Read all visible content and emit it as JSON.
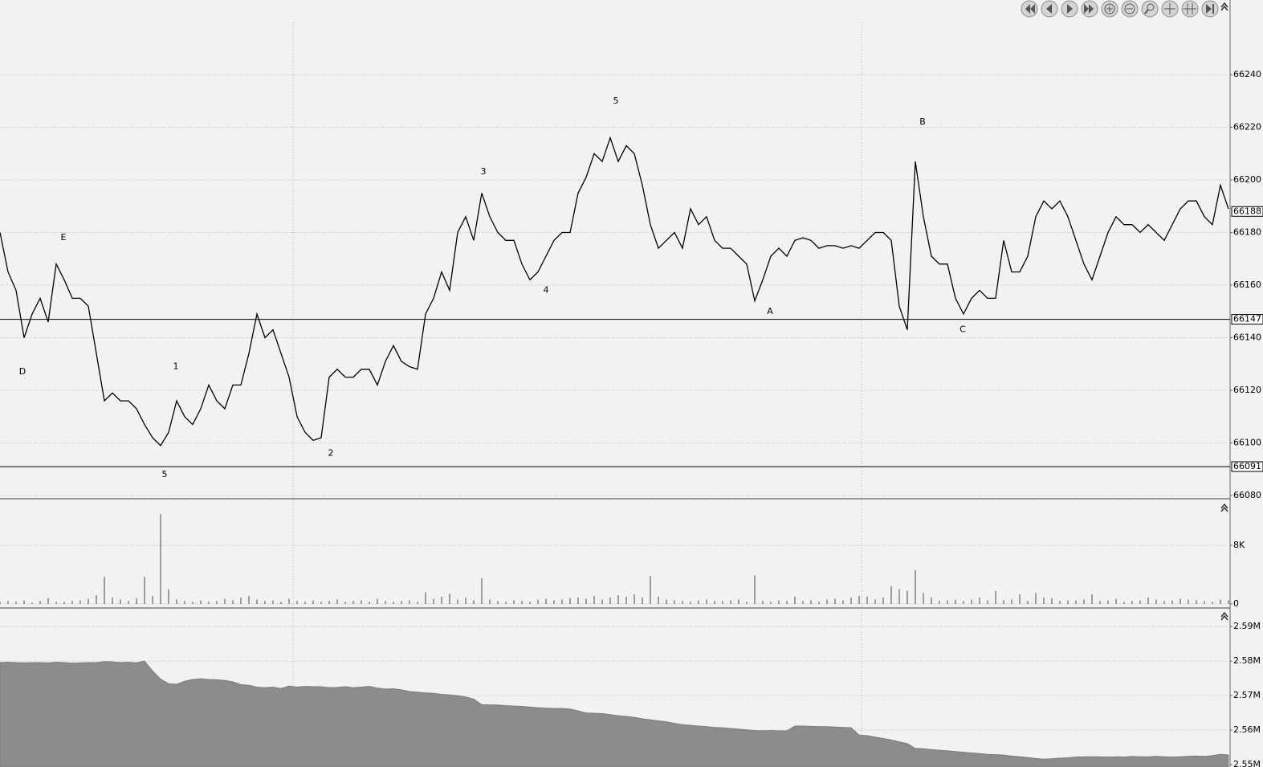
{
  "chart_data": [
    {
      "type": "line",
      "color": "#000000",
      "grid": true,
      "values": [
        66180,
        66165,
        66158,
        66140,
        66149,
        66155,
        66146,
        66168,
        66162,
        66155,
        66155,
        66152,
        66134,
        66116,
        66119,
        66116,
        66116,
        66113,
        66107,
        66102,
        66099,
        66104,
        66116,
        66110,
        66107,
        66113,
        66122,
        66116,
        66113,
        66122,
        66122,
        66134,
        66149,
        66140,
        66143,
        66134,
        66125,
        66110,
        66104,
        66101,
        66102,
        66125,
        66128,
        66125,
        66125,
        66128,
        66128,
        66122,
        66131,
        66137,
        66131,
        66129,
        66128,
        66149,
        66155,
        66165,
        66158,
        66180,
        66186,
        66177,
        66195,
        66186,
        66180,
        66177,
        66177,
        66168,
        66162,
        66165,
        66171,
        66177,
        66180,
        66180,
        66195,
        66201,
        66210,
        66207,
        66216,
        66207,
        66213,
        66210,
        66198,
        66183,
        66174,
        66177,
        66180,
        66174,
        66189,
        66183,
        66186,
        66177,
        66174,
        66174,
        66171,
        66168,
        66154,
        66162,
        66171,
        66174,
        66171,
        66177,
        66178,
        66177,
        66174,
        66175,
        66175,
        66174,
        66175,
        66174,
        66177,
        66180,
        66180,
        66177,
        66152,
        66143,
        66207,
        66186,
        66171,
        66168,
        66168,
        66155,
        66149,
        66155,
        66158,
        66155,
        66155,
        66177,
        66165,
        66165,
        66171,
        66186,
        66192,
        66189,
        66192,
        66186,
        66177,
        66168,
        66162,
        66171,
        66180,
        66186,
        66183,
        66183,
        66180,
        66183,
        66180,
        66177,
        66183,
        66189,
        66192,
        66192,
        66186,
        66183,
        66198,
        66189
      ],
      "ylim": [
        66080,
        66260
      ],
      "yticks": [
        66080,
        66100,
        66120,
        66140,
        66160,
        66180,
        66200,
        66220,
        66240
      ],
      "hlines": [
        66147,
        66091
      ],
      "last_value": 66188,
      "annotations": [
        {
          "text": "D",
          "x": 2.8,
          "y": 66127
        },
        {
          "text": "E",
          "x": 7.9,
          "y": 66178
        },
        {
          "text": "5",
          "x": 20.5,
          "y": 66088
        },
        {
          "text": "1",
          "x": 21.9,
          "y": 66129
        },
        {
          "text": "2",
          "x": 41.2,
          "y": 66096
        },
        {
          "text": "3",
          "x": 60.2,
          "y": 66203
        },
        {
          "text": "4",
          "x": 68,
          "y": 66158
        },
        {
          "text": "5",
          "x": 76.7,
          "y": 66230
        },
        {
          "text": "A",
          "x": 95.9,
          "y": 66150
        },
        {
          "text": "B",
          "x": 114.9,
          "y": 66222
        },
        {
          "text": "C",
          "x": 119.9,
          "y": 66143
        }
      ]
    },
    {
      "type": "bar",
      "color": "#808080",
      "grid": true,
      "values": [
        300,
        400,
        300,
        500,
        200,
        400,
        800,
        300,
        300,
        400,
        500,
        700,
        1200,
        3700,
        900,
        600,
        400,
        800,
        3700,
        1100,
        12300,
        2000,
        600,
        400,
        300,
        500,
        300,
        400,
        700,
        500,
        900,
        1100,
        600,
        400,
        500,
        300,
        700,
        400,
        300,
        500,
        300,
        400,
        600,
        300,
        400,
        500,
        300,
        700,
        400,
        300,
        400,
        500,
        300,
        1600,
        700,
        1000,
        1400,
        600,
        900,
        500,
        3500,
        600,
        400,
        300,
        500,
        400,
        300,
        600,
        700,
        500,
        600,
        800,
        900,
        700,
        1100,
        600,
        900,
        1200,
        1000,
        1300,
        900,
        3800,
        1000,
        600,
        500,
        400,
        300,
        500,
        600,
        400,
        400,
        500,
        600,
        300,
        3900,
        400,
        300,
        500,
        400,
        1000,
        400,
        500,
        300,
        600,
        700,
        500,
        900,
        1100,
        1000,
        600,
        900,
        2400,
        2000,
        1800,
        4600,
        1500,
        900,
        400,
        500,
        600,
        400,
        600,
        900,
        500,
        1800,
        500,
        600,
        1300,
        400,
        1500,
        900,
        800,
        400,
        500,
        500,
        600,
        1300,
        400,
        500,
        700,
        300,
        400,
        500,
        900,
        600,
        400,
        500,
        700,
        600,
        500,
        400,
        300,
        600,
        500
      ],
      "ylim": [
        0,
        13700
      ],
      "yticks": [
        0,
        {
          "value": 8000,
          "label": "8K"
        }
      ]
    },
    {
      "type": "area",
      "color": "#8c8c8c",
      "grid": true,
      "values": [
        2579600,
        2579700,
        2579600,
        2579500,
        2579600,
        2579600,
        2579500,
        2579700,
        2579600,
        2579400,
        2579500,
        2579600,
        2579600,
        2579900,
        2579800,
        2579600,
        2579700,
        2579500,
        2580000,
        2577200,
        2574800,
        2573500,
        2573300,
        2574200,
        2574700,
        2574900,
        2574700,
        2574600,
        2574400,
        2574000,
        2573200,
        2573000,
        2572500,
        2572300,
        2572500,
        2572100,
        2572800,
        2572500,
        2572700,
        2572600,
        2572600,
        2572300,
        2572400,
        2572600,
        2572300,
        2572500,
        2572700,
        2572200,
        2571900,
        2572000,
        2571700,
        2571200,
        2571000,
        2570800,
        2570700,
        2570400,
        2570200,
        2570000,
        2569600,
        2569000,
        2567400,
        2567300,
        2567300,
        2567100,
        2567000,
        2566900,
        2566700,
        2566500,
        2566400,
        2566300,
        2566300,
        2566100,
        2565600,
        2565000,
        2564900,
        2564800,
        2564500,
        2564200,
        2564000,
        2563700,
        2563300,
        2563000,
        2562700,
        2562400,
        2562000,
        2561600,
        2561400,
        2561200,
        2561000,
        2560800,
        2560700,
        2560500,
        2560300,
        2560100,
        2559900,
        2559800,
        2559900,
        2559800,
        2559800,
        2561200,
        2561200,
        2561100,
        2561000,
        2561000,
        2560900,
        2560800,
        2560700,
        2558600,
        2558400,
        2558000,
        2557600,
        2557200,
        2556600,
        2556100,
        2554700,
        2554600,
        2554400,
        2554200,
        2554000,
        2553800,
        2553600,
        2553400,
        2553200,
        2553000,
        2552900,
        2552800,
        2552500,
        2552300,
        2552100,
        2551800,
        2551600,
        2551700,
        2551900,
        2552000,
        2552200,
        2552300,
        2552300,
        2552300,
        2552200,
        2552300,
        2552200,
        2552400,
        2552300,
        2552300,
        2552400,
        2552300,
        2552200,
        2552300,
        2552400,
        2552500,
        2552400,
        2552600,
        2553000,
        2552800
      ],
      "ylim": [
        2549300,
        2594700
      ],
      "yticks": [
        {
          "value": 2550000,
          "label": "2.55M"
        },
        {
          "value": 2560000,
          "label": "2.56M"
        },
        {
          "value": 2570000,
          "label": "2.57M"
        },
        {
          "value": 2580000,
          "label": "2.58M"
        },
        {
          "value": 2590000,
          "label": "2.59M"
        }
      ]
    }
  ]
}
